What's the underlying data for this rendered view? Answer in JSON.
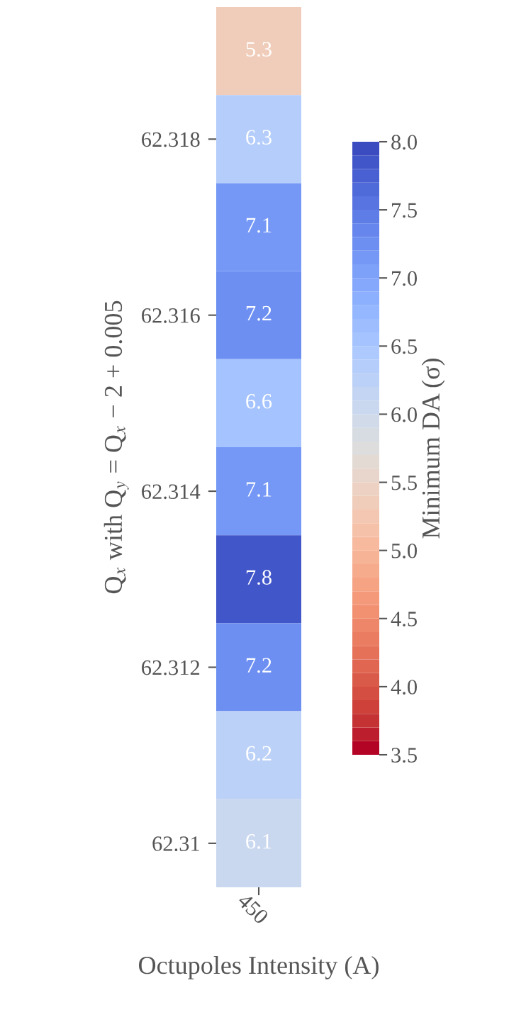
{
  "chart_data": {
    "type": "heatmap",
    "xlabel": "Octupoles Intensity (A)",
    "ylabel": "Q$_{x}$ with Q$_{y}$ = Q$_{x}$ − 2 + 0.005",
    "clabel": "Minimum DA (σ)",
    "categories": [
      "450"
    ],
    "y_categories": [
      null,
      "62.318",
      null,
      "62.316",
      null,
      "62.314",
      null,
      "62.312",
      null,
      "62.31"
    ],
    "cells": [
      [
        5.3
      ],
      [
        6.3
      ],
      [
        7.1
      ],
      [
        7.2
      ],
      [
        6.6
      ],
      [
        7.1
      ],
      [
        7.8
      ],
      [
        7.2
      ],
      [
        6.2
      ],
      [
        6.1
      ]
    ],
    "data_labels": true,
    "clim": [
      3.5,
      8.0
    ],
    "cticks": [
      3.5,
      {
        "value": 4,
        "label": "4.0"
      },
      4.5,
      {
        "value": 5,
        "label": "5.0"
      },
      5.5,
      {
        "value": 6,
        "label": "6.0"
      },
      6.5,
      {
        "value": 7,
        "label": "7.0"
      },
      7.5,
      {
        "value": 8,
        "label": "8.0"
      }
    ]
  }
}
